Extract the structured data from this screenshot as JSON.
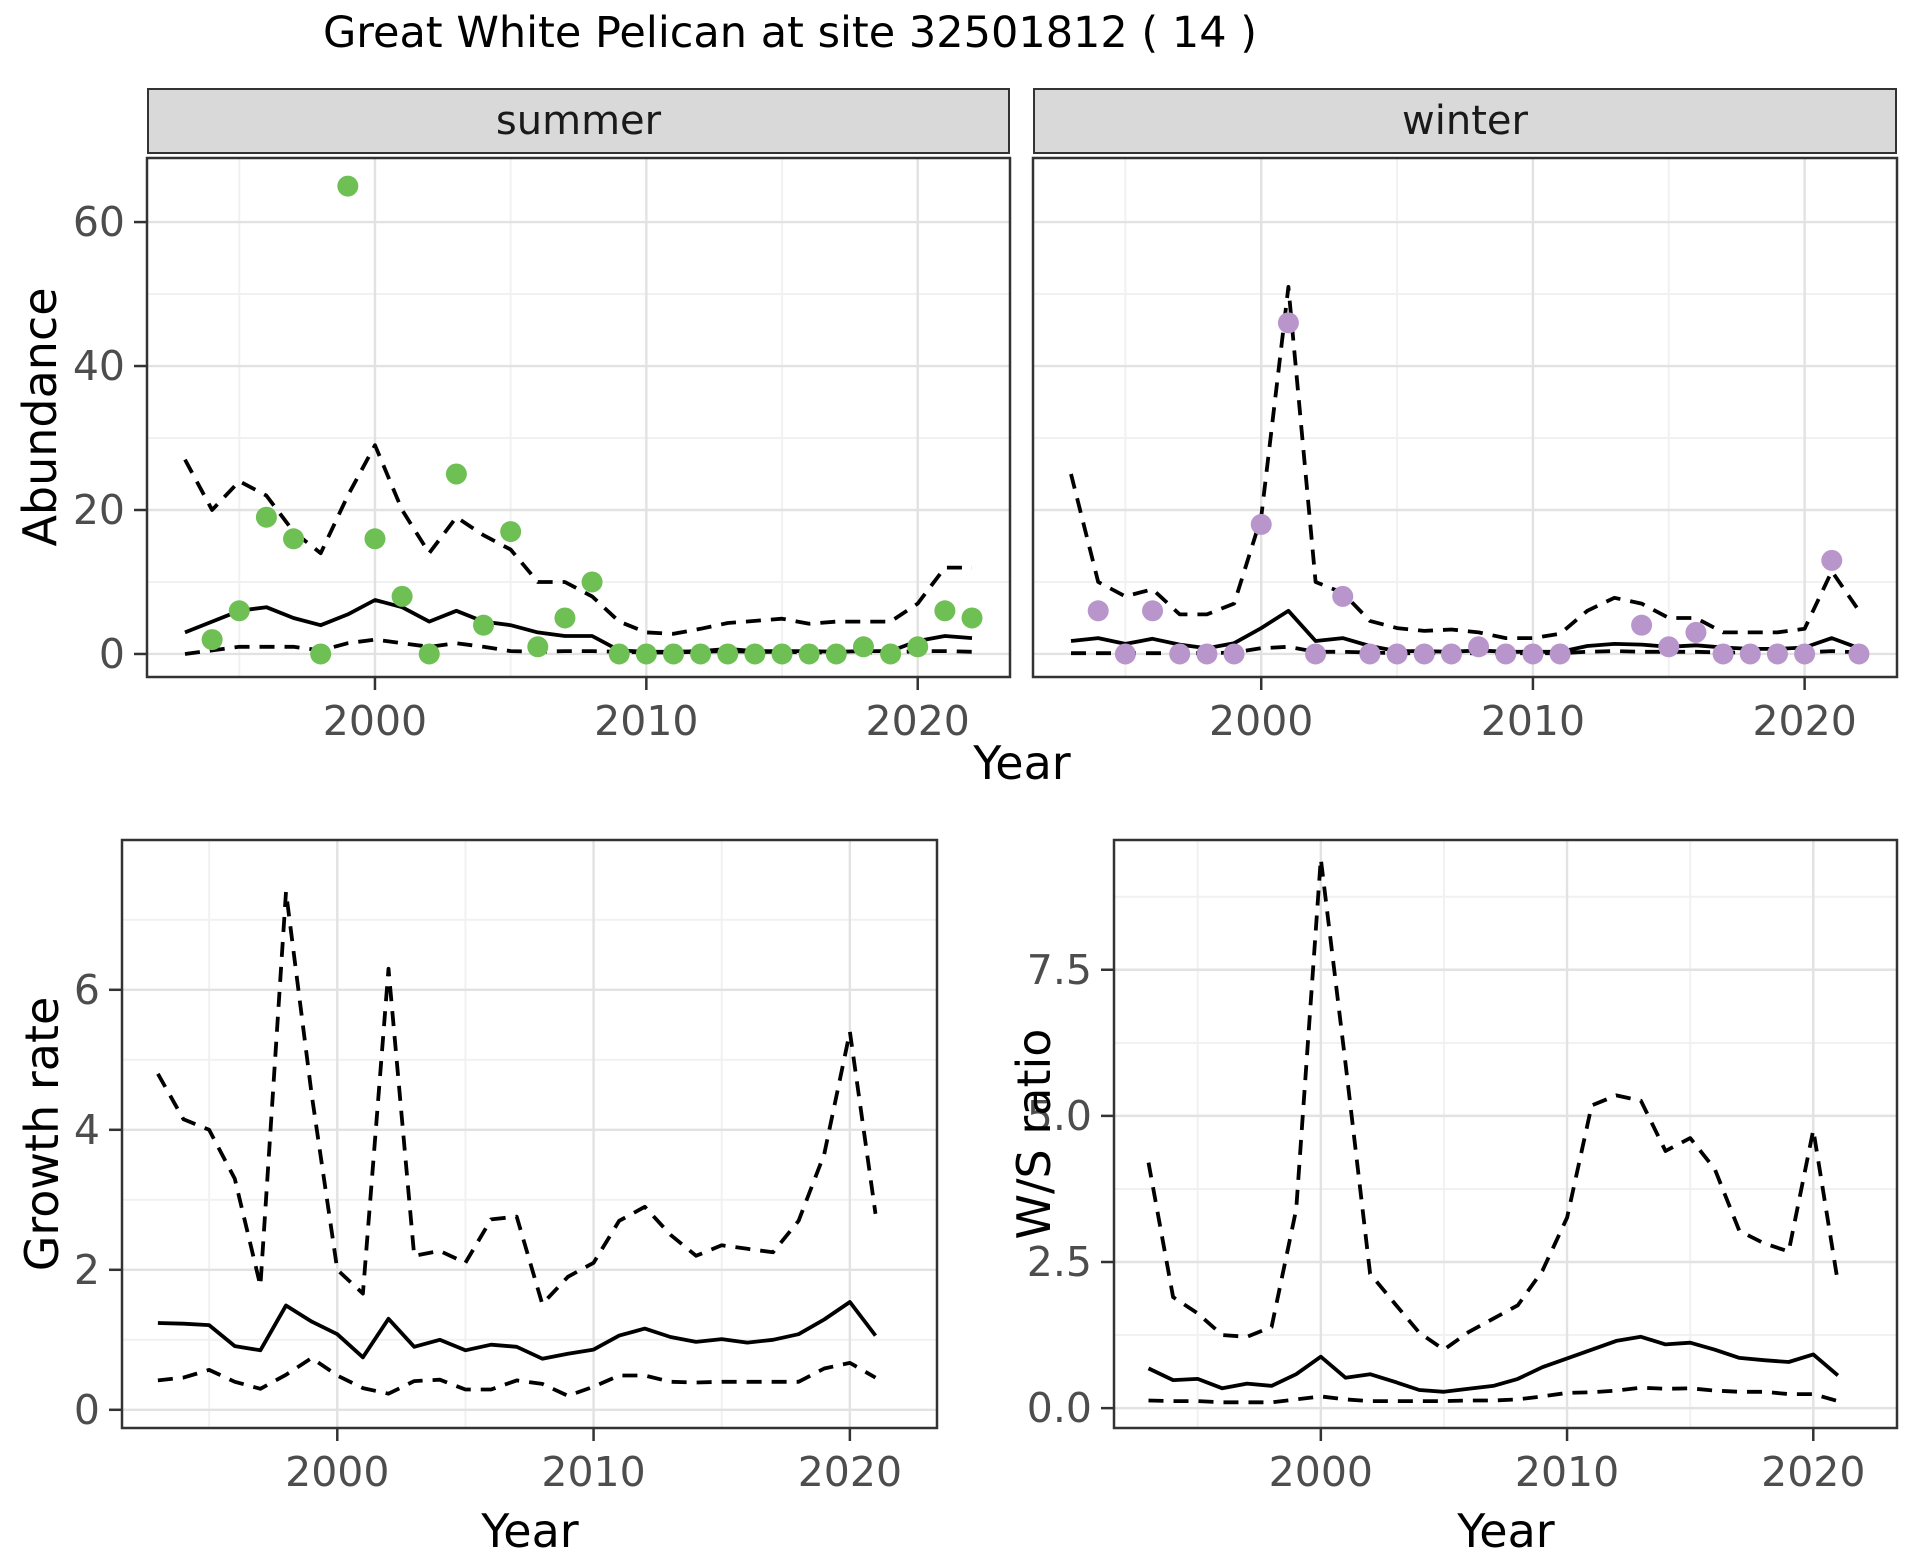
{
  "title": "Great White Pelican at site 32501812 ( 14 )",
  "facets": {
    "summer": "summer",
    "winter": "winter"
  },
  "axis_titles": {
    "x": "Year",
    "y_top": "Abundance",
    "y_growth": "Growth rate",
    "y_ws": "W/S ratio"
  },
  "colors": {
    "summer_point": "#6EBF54",
    "winter_point": "#B896CB",
    "line": "#000000",
    "strip_bg": "#D9D9D9",
    "strip_border": "#333333",
    "panel_border": "#333333",
    "grid_major": "#E2E2E2",
    "grid_minor": "#F1F1F1",
    "tick_text": "#4D4D4D"
  },
  "chart_data": [
    {
      "id": "summer",
      "type": "line+scatter",
      "facet_label": "summer",
      "xlabel": "Year",
      "ylabel": "Abundance",
      "xlim": [
        1991.6,
        2023.4
      ],
      "ylim": [
        -3.2,
        68.9
      ],
      "x_ticks": [
        2000,
        2010,
        2020
      ],
      "x_tick_labels": [
        "2000",
        "2010",
        "2020"
      ],
      "x_minor": [
        1995,
        2005,
        2015
      ],
      "y_ticks": [
        0,
        20,
        40,
        60
      ],
      "y_tick_labels": [
        "0",
        "20",
        "40",
        "60"
      ],
      "y_minor": [
        10,
        30,
        50
      ],
      "show_y_ticks": true,
      "years": [
        1993,
        1994,
        1995,
        1996,
        1997,
        1998,
        1999,
        2000,
        2001,
        2002,
        2003,
        2004,
        2005,
        2006,
        2007,
        2008,
        2009,
        2010,
        2011,
        2012,
        2013,
        2014,
        2015,
        2016,
        2017,
        2018,
        2019,
        2020,
        2021,
        2022
      ],
      "series": [
        {
          "name": "median",
          "style": "solid",
          "values": [
            3,
            4.5,
            6,
            6.5,
            5,
            4,
            5.5,
            7.5,
            6.5,
            4.5,
            6,
            4.5,
            4,
            3,
            2.5,
            2.5,
            0.5,
            0.3,
            0.3,
            0.4,
            0.7,
            0.4,
            0.4,
            0.4,
            0.3,
            0.4,
            0.4,
            1.8,
            2.5,
            2.2
          ]
        },
        {
          "name": "upper",
          "style": "dashed",
          "values": [
            27,
            20,
            24,
            22,
            17,
            14,
            22,
            29,
            20,
            14,
            19,
            16.5,
            14.5,
            10,
            10,
            8,
            4.5,
            3,
            2.8,
            3.5,
            4.3,
            4.6,
            4.9,
            4.2,
            4.5,
            4.5,
            4.5,
            7,
            12,
            12
          ]
        },
        {
          "name": "lower",
          "style": "dashed",
          "values": [
            0,
            0.5,
            1,
            1,
            1,
            0.5,
            1.5,
            2,
            1.5,
            1,
            1.5,
            1,
            0.4,
            0.3,
            0.4,
            0.4,
            0.3,
            0.2,
            0.2,
            0.3,
            0.4,
            0.3,
            0.3,
            0.2,
            0.2,
            0.2,
            0.2,
            0.4,
            0.4,
            0.3
          ]
        }
      ],
      "points": {
        "years": [
          1994,
          1995,
          1996,
          1997,
          1998,
          1999,
          2000,
          2001,
          2002,
          2003,
          2004,
          2005,
          2006,
          2007,
          2008,
          2009,
          2010,
          2011,
          2012,
          2013,
          2014,
          2015,
          2016,
          2017,
          2018,
          2019,
          2020,
          2021,
          2022
        ],
        "values": [
          2,
          6,
          19,
          16,
          0,
          65,
          16,
          8,
          0,
          25,
          4,
          17,
          1,
          5,
          10,
          0,
          0,
          0,
          0,
          0,
          0,
          0,
          0,
          0,
          1,
          0,
          1,
          6,
          5
        ],
        "color": "#6EBF54"
      }
    },
    {
      "id": "winter",
      "type": "line+scatter",
      "facet_label": "winter",
      "xlabel": "Year",
      "ylabel": "Abundance",
      "xlim": [
        1991.6,
        2023.4
      ],
      "ylim": [
        -3.2,
        68.9
      ],
      "x_ticks": [
        2000,
        2010,
        2020
      ],
      "x_tick_labels": [
        "2000",
        "2010",
        "2020"
      ],
      "x_minor": [
        1995,
        2005,
        2015
      ],
      "y_ticks": [
        0,
        20,
        40,
        60
      ],
      "y_tick_labels": [
        "0",
        "20",
        "40",
        "60"
      ],
      "y_minor": [
        10,
        30,
        50
      ],
      "show_y_ticks": false,
      "years": [
        1993,
        1994,
        1995,
        1996,
        1997,
        1998,
        1999,
        2000,
        2001,
        2002,
        2003,
        2004,
        2005,
        2006,
        2007,
        2008,
        2009,
        2010,
        2011,
        2012,
        2013,
        2014,
        2015,
        2016,
        2017,
        2018,
        2019,
        2020,
        2021,
        2022
      ],
      "series": [
        {
          "name": "median",
          "style": "solid",
          "values": [
            1.8,
            2.2,
            1.4,
            2.1,
            1.3,
            0.8,
            1.5,
            3.6,
            6,
            1.8,
            2.2,
            1.1,
            0.4,
            0.4,
            0.3,
            0.5,
            0.3,
            0.3,
            0.3,
            1.1,
            1.4,
            1.3,
            1,
            1.2,
            0.9,
            0.7,
            0.7,
            0.9,
            2.2,
            0.8
          ]
        },
        {
          "name": "upper",
          "style": "dashed",
          "values": [
            25,
            10,
            8,
            9,
            5.5,
            5.5,
            7,
            19,
            51,
            10,
            8.5,
            4.6,
            3.6,
            3.2,
            3.4,
            3,
            2.2,
            2.2,
            2.8,
            6,
            7.8,
            7,
            5,
            5,
            3,
            3,
            3,
            3.5,
            11.5,
            6
          ]
        },
        {
          "name": "lower",
          "style": "dashed",
          "values": [
            0.1,
            0.1,
            0.1,
            0.1,
            0.1,
            0.1,
            0.2,
            0.8,
            1,
            0.3,
            0.3,
            0.2,
            0.1,
            0.1,
            0.1,
            0.1,
            0.1,
            0.1,
            0.1,
            0.3,
            0.4,
            0.3,
            0.3,
            0.3,
            0.2,
            0.2,
            0.2,
            0.2,
            0.4,
            0.2
          ]
        }
      ],
      "points": {
        "years": [
          1994,
          1995,
          1996,
          1997,
          1998,
          1999,
          2000,
          2001,
          2002,
          2003,
          2004,
          2005,
          2006,
          2007,
          2008,
          2009,
          2010,
          2011,
          2014,
          2015,
          2016,
          2017,
          2018,
          2019,
          2020,
          2021,
          2022
        ],
        "values": [
          6,
          0,
          6,
          0,
          0,
          0,
          18,
          46,
          0,
          8,
          0,
          0,
          0,
          0,
          1,
          0,
          0,
          0,
          4,
          1,
          3,
          0,
          0,
          0,
          0,
          13,
          0
        ],
        "color": "#B896CB"
      }
    },
    {
      "id": "growth",
      "type": "line",
      "facet_label": "",
      "xlabel": "Year",
      "ylabel": "Growth rate",
      "xlim": [
        1991.6,
        2023.4
      ],
      "ylim": [
        -0.26,
        8.14
      ],
      "x_ticks": [
        2000,
        2010,
        2020
      ],
      "x_tick_labels": [
        "2000",
        "2010",
        "2020"
      ],
      "x_minor": [
        1995,
        2005,
        2015
      ],
      "y_ticks": [
        0,
        2,
        4,
        6
      ],
      "y_tick_labels": [
        "0",
        "2",
        "4",
        "6"
      ],
      "y_minor": [
        1,
        3,
        5,
        7
      ],
      "show_y_ticks": true,
      "years": [
        1993,
        1994,
        1995,
        1996,
        1997,
        1998,
        1999,
        2000,
        2001,
        2002,
        2003,
        2004,
        2005,
        2006,
        2007,
        2008,
        2009,
        2010,
        2011,
        2012,
        2013,
        2014,
        2015,
        2016,
        2017,
        2018,
        2019,
        2020,
        2021
      ],
      "series": [
        {
          "name": "median",
          "style": "solid",
          "values": [
            1.24,
            1.23,
            1.21,
            0.91,
            0.85,
            1.49,
            1.26,
            1.08,
            0.75,
            1.3,
            0.9,
            1,
            0.85,
            0.93,
            0.9,
            0.73,
            0.8,
            0.86,
            1.06,
            1.16,
            1.04,
            0.97,
            1.01,
            0.96,
            1,
            1.08,
            1.29,
            1.54,
            1.06
          ]
        },
        {
          "name": "upper",
          "style": "dashed",
          "values": [
            4.8,
            4.15,
            4,
            3.3,
            1.77,
            7.4,
            4.5,
            2,
            1.66,
            6.3,
            2.2,
            2.27,
            2.1,
            2.72,
            2.76,
            1.51,
            1.9,
            2.1,
            2.7,
            2.9,
            2.5,
            2.2,
            2.35,
            2.3,
            2.25,
            2.7,
            3.65,
            5.4,
            2.8
          ]
        },
        {
          "name": "lower",
          "style": "dashed",
          "values": [
            0.42,
            0.46,
            0.57,
            0.4,
            0.3,
            0.5,
            0.74,
            0.49,
            0.31,
            0.23,
            0.41,
            0.43,
            0.29,
            0.29,
            0.42,
            0.37,
            0.2,
            0.33,
            0.49,
            0.49,
            0.4,
            0.39,
            0.4,
            0.4,
            0.4,
            0.4,
            0.59,
            0.67,
            0.46
          ]
        }
      ],
      "points": null
    },
    {
      "id": "ws",
      "type": "line",
      "facet_label": "",
      "xlabel": "Year",
      "ylabel": "W/S ratio",
      "xlim": [
        1991.6,
        2023.4
      ],
      "ylim": [
        -0.34,
        9.72
      ],
      "x_ticks": [
        2000,
        2010,
        2020
      ],
      "x_tick_labels": [
        "2000",
        "2010",
        "2020"
      ],
      "x_minor": [
        1995,
        2005,
        2015
      ],
      "y_ticks": [
        0,
        2.5,
        5,
        7.5
      ],
      "y_tick_labels": [
        "0.0",
        "2.5",
        "5.0",
        "7.5"
      ],
      "y_minor": [
        1.25,
        3.75,
        6.25,
        8.75
      ],
      "show_y_ticks": true,
      "years": [
        1993,
        1994,
        1995,
        1996,
        1997,
        1998,
        1999,
        2000,
        2001,
        2002,
        2003,
        2004,
        2005,
        2006,
        2007,
        2008,
        2009,
        2010,
        2011,
        2012,
        2013,
        2014,
        2015,
        2016,
        2017,
        2018,
        2019,
        2020,
        2021
      ],
      "series": [
        {
          "name": "median",
          "style": "solid",
          "values": [
            0.68,
            0.48,
            0.5,
            0.34,
            0.42,
            0.38,
            0.58,
            0.88,
            0.52,
            0.58,
            0.45,
            0.31,
            0.28,
            0.33,
            0.38,
            0.5,
            0.7,
            0.85,
            1,
            1.15,
            1.22,
            1.09,
            1.12,
            1,
            0.86,
            0.82,
            0.79,
            0.92,
            0.56
          ]
        },
        {
          "name": "upper",
          "style": "dashed",
          "values": [
            4.2,
            1.9,
            1.62,
            1.25,
            1.22,
            1.39,
            3.4,
            9.4,
            5.9,
            2.3,
            1.79,
            1.29,
            1,
            1.3,
            1.53,
            1.76,
            2.35,
            3.26,
            5.18,
            5.35,
            5.26,
            4.4,
            4.62,
            4.09,
            3.03,
            2.82,
            2.68,
            4.76,
            2.15
          ]
        },
        {
          "name": "lower",
          "style": "dashed",
          "values": [
            0.13,
            0.12,
            0.12,
            0.1,
            0.1,
            0.1,
            0.15,
            0.2,
            0.15,
            0.12,
            0.12,
            0.12,
            0.12,
            0.13,
            0.13,
            0.15,
            0.2,
            0.26,
            0.27,
            0.3,
            0.35,
            0.33,
            0.34,
            0.3,
            0.28,
            0.28,
            0.24,
            0.24,
            0.12
          ]
        }
      ],
      "points": null
    }
  ]
}
